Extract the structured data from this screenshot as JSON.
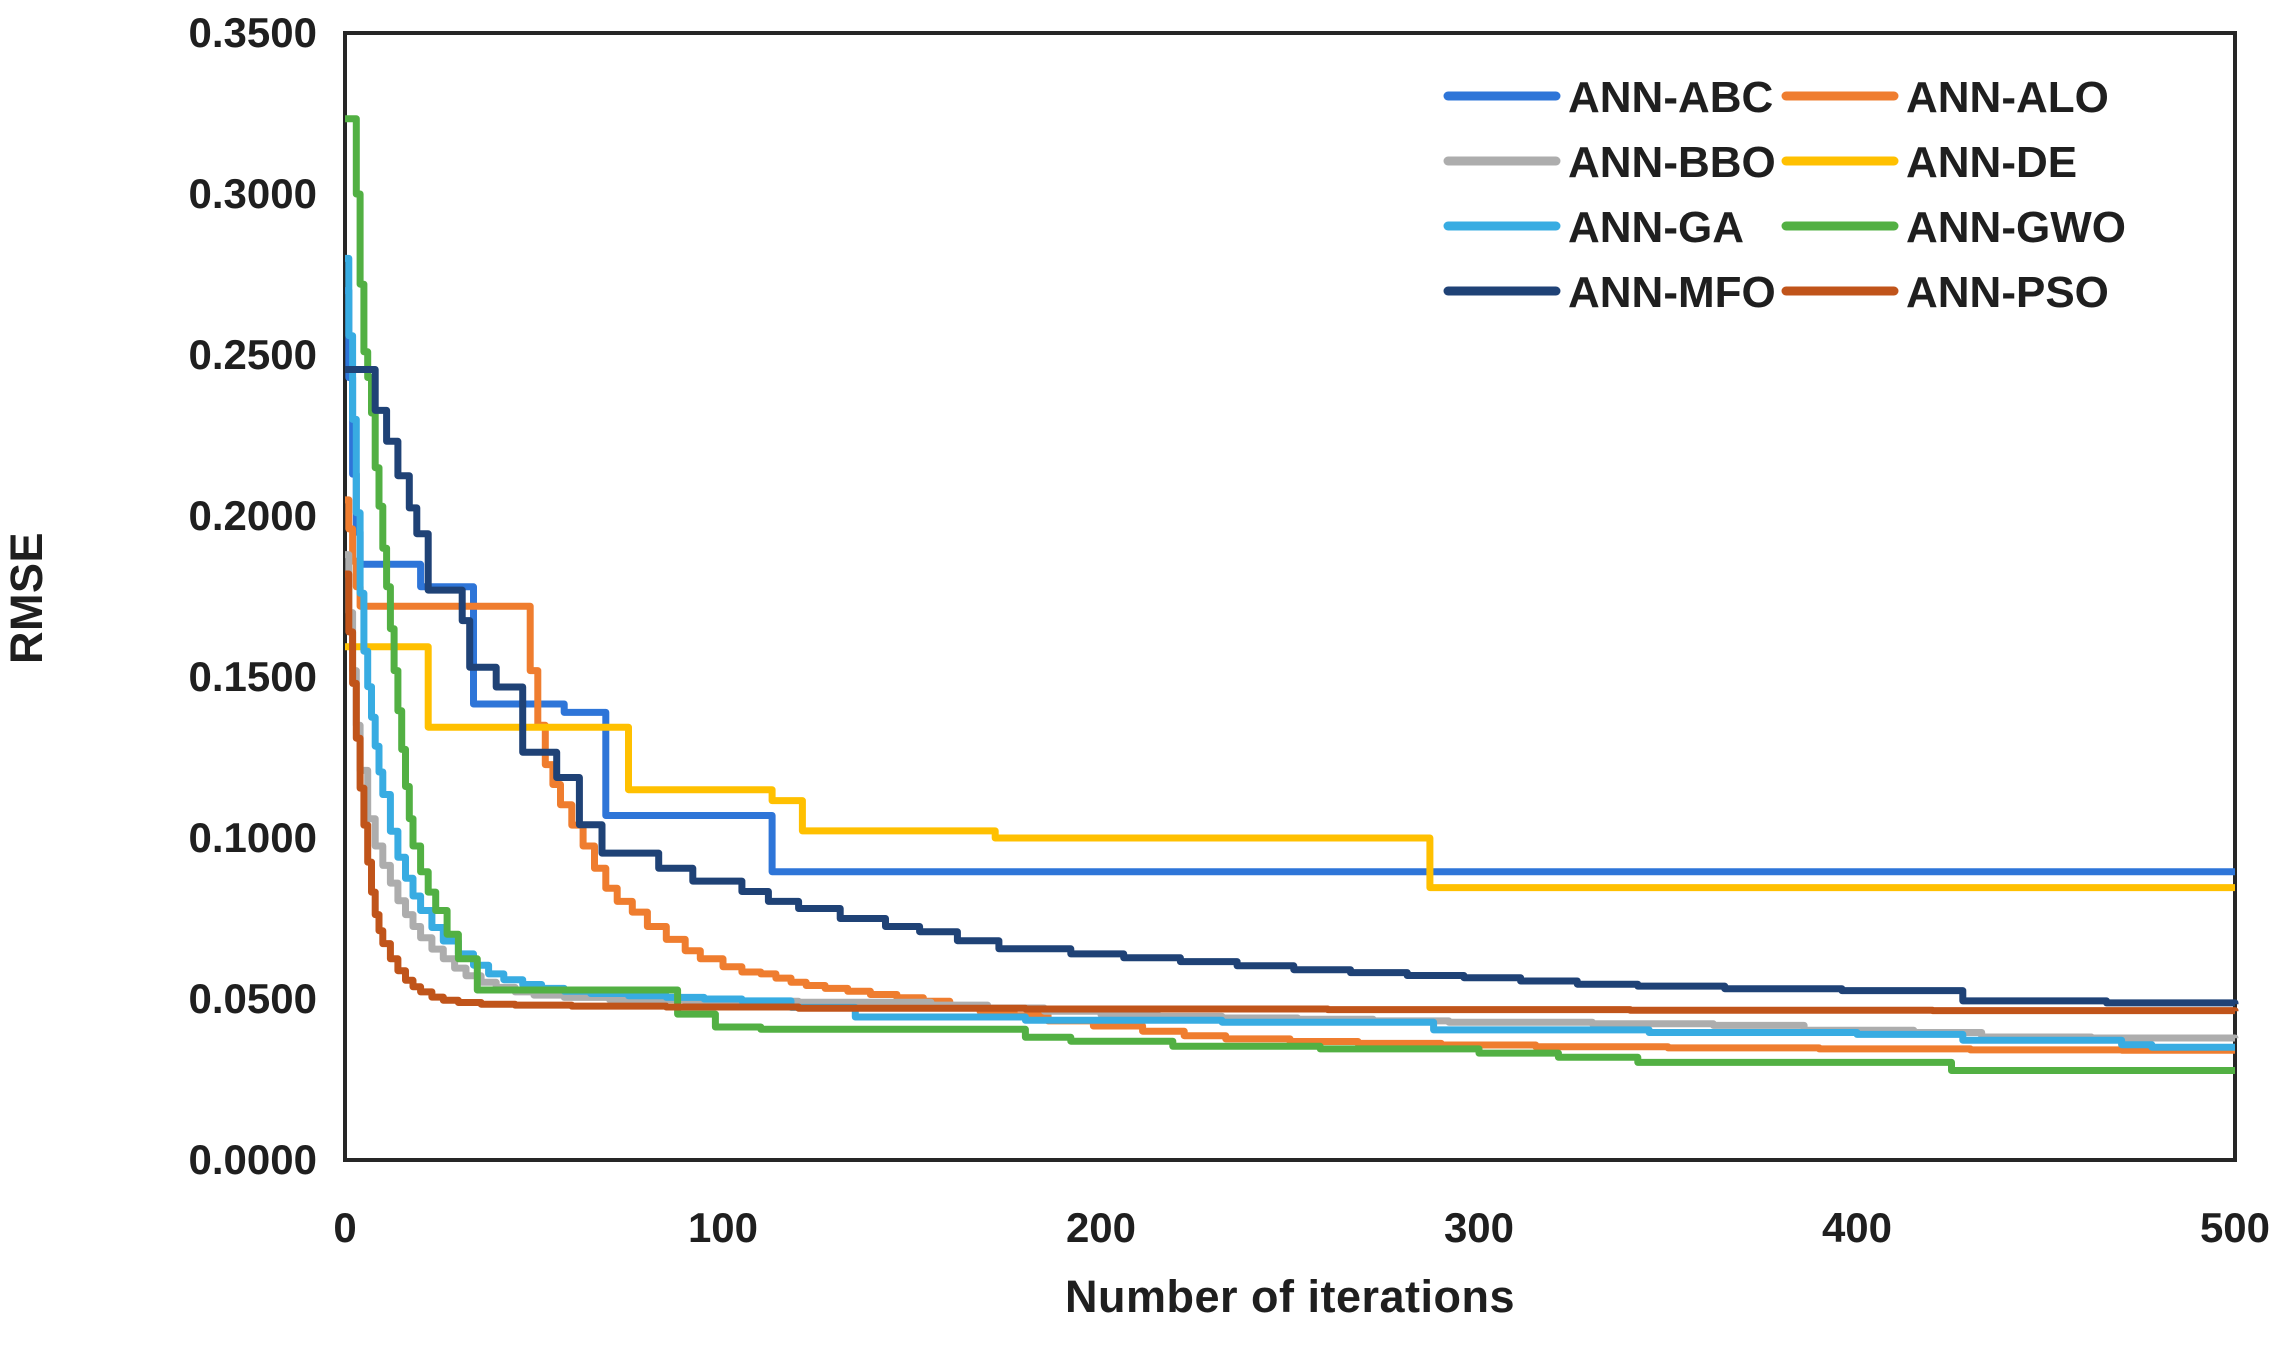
{
  "chart_data": {
    "type": "line",
    "title": "",
    "xlabel": "Number of iterations",
    "ylabel": "RMSE",
    "xlim": [
      0,
      500
    ],
    "ylim": [
      0.0,
      0.35
    ],
    "x_ticks": [
      0,
      100,
      200,
      300,
      400,
      500
    ],
    "x_tick_labels": [
      "0",
      "100",
      "200",
      "300",
      "400",
      "500"
    ],
    "y_ticks": [
      0.0,
      0.05,
      0.1,
      0.15,
      0.2,
      0.25,
      0.3,
      0.35
    ],
    "y_tick_labels": [
      "0.0000",
      "0.0500",
      "0.1000",
      "0.1500",
      "0.2000",
      "0.2500",
      "0.3000",
      "0.3500"
    ],
    "grid": false,
    "legend_position": "top-right-inside",
    "legend_columns": 2,
    "interpolation": "step-after",
    "line_width": 7,
    "border_color": "#262626",
    "text_color": "#1f1f1f",
    "background_color": "#ffffff",
    "series": [
      {
        "name": "ANN-ABC",
        "color": "#2E75D8",
        "points": [
          [
            0,
            0.27
          ],
          [
            1,
            0.243
          ],
          [
            2,
            0.213
          ],
          [
            3,
            0.195
          ],
          [
            4,
            0.185
          ],
          [
            20,
            0.178
          ],
          [
            34,
            0.1416
          ],
          [
            58,
            0.139
          ],
          [
            69,
            0.107
          ],
          [
            113,
            0.0895
          ],
          [
            500,
            0.0895
          ]
        ]
      },
      {
        "name": "ANN-ALO",
        "color": "#EF7D2F",
        "points": [
          [
            0,
            0.205
          ],
          [
            1,
            0.196
          ],
          [
            2,
            0.186
          ],
          [
            3,
            0.178
          ],
          [
            4,
            0.172
          ],
          [
            49,
            0.152
          ],
          [
            51,
            0.135
          ],
          [
            53,
            0.1228
          ],
          [
            55,
            0.1166
          ],
          [
            57,
            0.1103
          ],
          [
            60,
            0.104
          ],
          [
            63,
            0.0975
          ],
          [
            66,
            0.0906
          ],
          [
            69,
            0.0844
          ],
          [
            72,
            0.0803
          ],
          [
            76,
            0.077
          ],
          [
            80,
            0.0725
          ],
          [
            85,
            0.0685
          ],
          [
            90,
            0.065
          ],
          [
            94,
            0.0625
          ],
          [
            100,
            0.06
          ],
          [
            105,
            0.0584
          ],
          [
            110,
            0.0578
          ],
          [
            114,
            0.0565
          ],
          [
            118,
            0.0552
          ],
          [
            122,
            0.0542
          ],
          [
            127,
            0.0533
          ],
          [
            133,
            0.0524
          ],
          [
            139,
            0.0514
          ],
          [
            146,
            0.0504
          ],
          [
            153,
            0.0493
          ],
          [
            160,
            0.0478
          ],
          [
            168,
            0.0462
          ],
          [
            177,
            0.0448
          ],
          [
            186,
            0.0432
          ],
          [
            198,
            0.0416
          ],
          [
            211,
            0.04
          ],
          [
            222,
            0.0386
          ],
          [
            233,
            0.0376
          ],
          [
            250,
            0.0368
          ],
          [
            268,
            0.0362
          ],
          [
            290,
            0.0357
          ],
          [
            315,
            0.0352
          ],
          [
            350,
            0.0348
          ],
          [
            390,
            0.0345
          ],
          [
            430,
            0.0342
          ],
          [
            470,
            0.0341
          ],
          [
            500,
            0.0341
          ]
        ]
      },
      {
        "name": "ANN-BBO",
        "color": "#ADADAD",
        "points": [
          [
            0,
            0.188
          ],
          [
            1,
            0.17
          ],
          [
            2,
            0.152
          ],
          [
            3,
            0.135
          ],
          [
            4,
            0.121
          ],
          [
            6,
            0.106
          ],
          [
            8,
            0.0975
          ],
          [
            10,
            0.0915
          ],
          [
            12,
            0.086
          ],
          [
            14,
            0.0805
          ],
          [
            16,
            0.0762
          ],
          [
            18,
            0.0725
          ],
          [
            20,
            0.069
          ],
          [
            23,
            0.0655
          ],
          [
            26,
            0.0625
          ],
          [
            29,
            0.0596
          ],
          [
            32,
            0.0572
          ],
          [
            36,
            0.0552
          ],
          [
            40,
            0.0536
          ],
          [
            45,
            0.0522
          ],
          [
            50,
            0.0512
          ],
          [
            58,
            0.0505
          ],
          [
            70,
            0.0498
          ],
          [
            90,
            0.0493
          ],
          [
            120,
            0.049
          ],
          [
            155,
            0.0481
          ],
          [
            170,
            0.0472
          ],
          [
            185,
            0.0462
          ],
          [
            200,
            0.0452
          ],
          [
            215,
            0.0446
          ],
          [
            232,
            0.0441
          ],
          [
            252,
            0.0437
          ],
          [
            272,
            0.0432
          ],
          [
            292,
            0.0428
          ],
          [
            330,
            0.0423
          ],
          [
            362,
            0.0418
          ],
          [
            386,
            0.0403
          ],
          [
            415,
            0.0396
          ],
          [
            433,
            0.0382
          ],
          [
            462,
            0.0379
          ],
          [
            500,
            0.0378
          ]
        ]
      },
      {
        "name": "ANN-DE",
        "color": "#FFC000",
        "points": [
          [
            0,
            0.1594
          ],
          [
            22,
            0.1344
          ],
          [
            75,
            0.115
          ],
          [
            113,
            0.1116
          ],
          [
            121,
            0.1022
          ],
          [
            172,
            0.1
          ],
          [
            287,
            0.0846
          ],
          [
            500,
            0.0846
          ]
        ]
      },
      {
        "name": "ANN-GA",
        "color": "#38ACE2",
        "points": [
          [
            0,
            0.28
          ],
          [
            1,
            0.256
          ],
          [
            2,
            0.23
          ],
          [
            3,
            0.201
          ],
          [
            4,
            0.176
          ],
          [
            5,
            0.158
          ],
          [
            6,
            0.147
          ],
          [
            7,
            0.1375
          ],
          [
            8,
            0.1285
          ],
          [
            9,
            0.1205
          ],
          [
            10,
            0.1135
          ],
          [
            12,
            0.1021
          ],
          [
            14,
            0.094
          ],
          [
            16,
            0.0875
          ],
          [
            18,
            0.082
          ],
          [
            20,
            0.0775
          ],
          [
            23,
            0.0722
          ],
          [
            26,
            0.068
          ],
          [
            30,
            0.064
          ],
          [
            34,
            0.0605
          ],
          [
            38,
            0.0578
          ],
          [
            42,
            0.056
          ],
          [
            47,
            0.0545
          ],
          [
            52,
            0.0533
          ],
          [
            58,
            0.0524
          ],
          [
            65,
            0.0517
          ],
          [
            75,
            0.051
          ],
          [
            85,
            0.0505
          ],
          [
            95,
            0.05
          ],
          [
            105,
            0.0494
          ],
          [
            118,
            0.0474
          ],
          [
            135,
            0.0444
          ],
          [
            180,
            0.0434
          ],
          [
            232,
            0.0428
          ],
          [
            288,
            0.0404
          ],
          [
            345,
            0.0396
          ],
          [
            400,
            0.039
          ],
          [
            428,
            0.0372
          ],
          [
            470,
            0.0358
          ],
          [
            478,
            0.035
          ],
          [
            500,
            0.035
          ]
        ]
      },
      {
        "name": "ANN-GWO",
        "color": "#52B043",
        "points": [
          [
            0,
            0.3234
          ],
          [
            3,
            0.3
          ],
          [
            4,
            0.272
          ],
          [
            5,
            0.251
          ],
          [
            6,
            0.243
          ],
          [
            7,
            0.232
          ],
          [
            8,
            0.215
          ],
          [
            9,
            0.203
          ],
          [
            10,
            0.19
          ],
          [
            11,
            0.178
          ],
          [
            12,
            0.165
          ],
          [
            13,
            0.152
          ],
          [
            14,
            0.1395
          ],
          [
            15,
            0.1275
          ],
          [
            16,
            0.116
          ],
          [
            17,
            0.106
          ],
          [
            18,
            0.0975
          ],
          [
            20,
            0.0895
          ],
          [
            22,
            0.0832
          ],
          [
            24,
            0.0775
          ],
          [
            27,
            0.0701
          ],
          [
            30,
            0.0625
          ],
          [
            35,
            0.0528
          ],
          [
            88,
            0.0453
          ],
          [
            98,
            0.0413
          ],
          [
            110,
            0.0406
          ],
          [
            180,
            0.0381
          ],
          [
            192,
            0.0369
          ],
          [
            219,
            0.0353
          ],
          [
            258,
            0.0345
          ],
          [
            300,
            0.0332
          ],
          [
            321,
            0.0319
          ],
          [
            342,
            0.0303
          ],
          [
            425,
            0.0278
          ],
          [
            500,
            0.0278
          ]
        ]
      },
      {
        "name": "ANN-MFO",
        "color": "#1F4276",
        "points": [
          [
            0,
            0.2455
          ],
          [
            8,
            0.2328
          ],
          [
            11,
            0.2232
          ],
          [
            14,
            0.2125
          ],
          [
            17,
            0.2025
          ],
          [
            19,
            0.1945
          ],
          [
            22,
            0.177
          ],
          [
            31,
            0.1675
          ],
          [
            33,
            0.153
          ],
          [
            40,
            0.1469
          ],
          [
            47,
            0.1266
          ],
          [
            56,
            0.1188
          ],
          [
            62,
            0.1041
          ],
          [
            68,
            0.0953
          ],
          [
            83,
            0.0906
          ],
          [
            92,
            0.0866
          ],
          [
            105,
            0.0834
          ],
          [
            112,
            0.0803
          ],
          [
            120,
            0.0781
          ],
          [
            131,
            0.075
          ],
          [
            143,
            0.0725
          ],
          [
            152,
            0.0709
          ],
          [
            162,
            0.0681
          ],
          [
            173,
            0.0656
          ],
          [
            192,
            0.064
          ],
          [
            206,
            0.0628
          ],
          [
            221,
            0.0616
          ],
          [
            236,
            0.0603
          ],
          [
            251,
            0.0591
          ],
          [
            266,
            0.0582
          ],
          [
            281,
            0.0573
          ],
          [
            296,
            0.0566
          ],
          [
            311,
            0.0556
          ],
          [
            326,
            0.0546
          ],
          [
            342,
            0.054
          ],
          [
            365,
            0.0532
          ],
          [
            396,
            0.0526
          ],
          [
            428,
            0.0494
          ],
          [
            466,
            0.0488
          ],
          [
            500,
            0.0484
          ]
        ]
      },
      {
        "name": "ANN-PSO",
        "color": "#C0541A",
        "points": [
          [
            0,
            0.182
          ],
          [
            1,
            0.164
          ],
          [
            2,
            0.148
          ],
          [
            3,
            0.131
          ],
          [
            4,
            0.1155
          ],
          [
            5,
            0.104
          ],
          [
            6,
            0.0925
          ],
          [
            7,
            0.0832
          ],
          [
            8,
            0.0762
          ],
          [
            9,
            0.0712
          ],
          [
            10,
            0.0672
          ],
          [
            12,
            0.0625
          ],
          [
            14,
            0.0588
          ],
          [
            16,
            0.0558
          ],
          [
            18,
            0.0538
          ],
          [
            20,
            0.0522
          ],
          [
            23,
            0.0506
          ],
          [
            26,
            0.0496
          ],
          [
            30,
            0.0489
          ],
          [
            36,
            0.0484
          ],
          [
            45,
            0.0481
          ],
          [
            60,
            0.0478
          ],
          [
            85,
            0.0475
          ],
          [
            120,
            0.0471
          ],
          [
            180,
            0.0469
          ],
          [
            260,
            0.0467
          ],
          [
            340,
            0.0465
          ],
          [
            420,
            0.0464
          ],
          [
            500,
            0.0462
          ]
        ]
      }
    ]
  }
}
